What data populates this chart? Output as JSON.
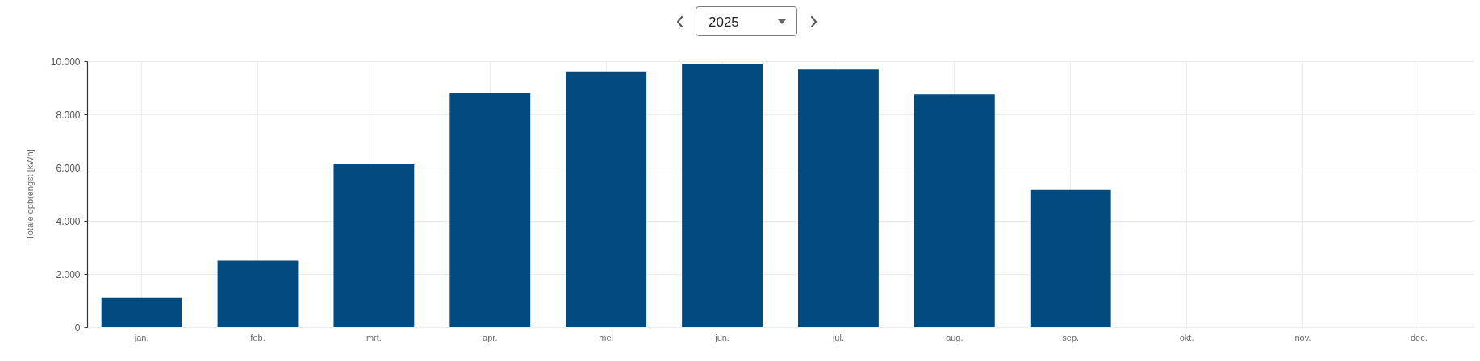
{
  "chart_data": {
    "type": "bar",
    "title": "2025",
    "ylabel": "Totale opbrengst [kWh]",
    "categories": [
      "jan.",
      "feb.",
      "mrt.",
      "apr.",
      "mei",
      "jun.",
      "jul.",
      "aug.",
      "sep.",
      "okt.",
      "nov.",
      "dec."
    ],
    "values": [
      1100,
      2500,
      6120,
      8800,
      9610,
      9910,
      9690,
      8750,
      5160,
      null,
      null,
      null
    ],
    "color": "#034b7f",
    "ylim": [
      0,
      10000
    ],
    "yticks": [
      0,
      {
        "value": 2000,
        "label": "2.000"
      },
      {
        "value": 4000,
        "label": "4.000"
      },
      {
        "value": 6000,
        "label": "6.000"
      },
      {
        "value": 8000,
        "label": "8.000"
      },
      {
        "value": 10000,
        "label": "10.000"
      }
    ],
    "grid": true
  }
}
